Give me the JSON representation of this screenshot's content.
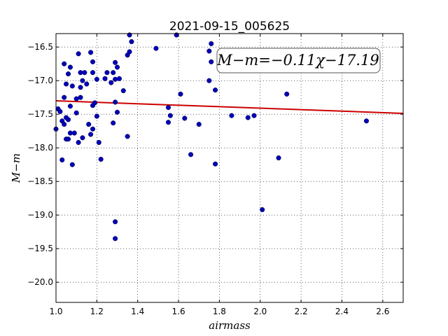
{
  "chart_data": {
    "type": "scatter",
    "title": "2021-09-15_005625",
    "xlabel": "airmass",
    "ylabel": "M−m",
    "xlim": [
      1.0,
      2.7
    ],
    "ylim": [
      -20.3,
      -16.3
    ],
    "y_inverted": true,
    "grid": true,
    "grid_style": "dotted",
    "xticks": [
      1.0,
      1.2,
      1.4,
      1.6,
      1.8,
      2.0,
      2.2,
      2.4,
      2.6
    ],
    "xtick_labels": [
      "1.0",
      "1.2",
      "1.4",
      "1.6",
      "1.8",
      "2.0",
      "2.2",
      "2.4",
      "2.6"
    ],
    "yticks": [
      -16.5,
      -17.0,
      -17.5,
      -18.0,
      -18.5,
      -19.0,
      -19.5,
      -20.0
    ],
    "ytick_labels": [
      "−16.5",
      "−17.0",
      "−17.5",
      "−18.0",
      "−18.5",
      "−19.0",
      "−19.5",
      "−20.0"
    ],
    "annotation": "M−m=−0.11χ−17.19",
    "annotation_position": "top-right",
    "fit_line": {
      "slope": -0.11,
      "intercept": -17.19,
      "color": "#cc0000"
    },
    "point_color": "#0000bb",
    "series": [
      {
        "type": "scatter",
        "points": [
          [
            1.0,
            -17.72
          ],
          [
            1.01,
            -17.42
          ],
          [
            1.02,
            -17.46
          ],
          [
            1.03,
            -18.18
          ],
          [
            1.03,
            -17.6
          ],
          [
            1.04,
            -17.65
          ],
          [
            1.04,
            -16.75
          ],
          [
            1.04,
            -17.25
          ],
          [
            1.05,
            -17.87
          ],
          [
            1.05,
            -17.55
          ],
          [
            1.05,
            -17.05
          ],
          [
            1.06,
            -16.9
          ],
          [
            1.06,
            -17.58
          ],
          [
            1.06,
            -17.87
          ],
          [
            1.07,
            -16.8
          ],
          [
            1.07,
            -17.38
          ],
          [
            1.07,
            -17.78
          ],
          [
            1.08,
            -17.08
          ],
          [
            1.08,
            -18.25
          ],
          [
            1.09,
            -17.78
          ],
          [
            1.1,
            -17.27
          ],
          [
            1.1,
            -17.48
          ],
          [
            1.11,
            -17.92
          ],
          [
            1.11,
            -16.6
          ],
          [
            1.12,
            -16.88
          ],
          [
            1.12,
            -17.1
          ],
          [
            1.12,
            -17.25
          ],
          [
            1.13,
            -17.0
          ],
          [
            1.13,
            -17.85
          ],
          [
            1.14,
            -16.88
          ],
          [
            1.15,
            -17.05
          ],
          [
            1.16,
            -17.65
          ],
          [
            1.17,
            -16.58
          ],
          [
            1.17,
            -17.8
          ],
          [
            1.18,
            -16.88
          ],
          [
            1.18,
            -16.72
          ],
          [
            1.18,
            -17.37
          ],
          [
            1.18,
            -17.72
          ],
          [
            1.19,
            -17.33
          ],
          [
            1.2,
            -17.53
          ],
          [
            1.2,
            -16.98
          ],
          [
            1.21,
            -17.92
          ],
          [
            1.22,
            -18.17
          ],
          [
            1.24,
            -16.97
          ],
          [
            1.25,
            -16.88
          ],
          [
            1.27,
            -17.03
          ],
          [
            1.28,
            -17.63
          ],
          [
            1.28,
            -16.88
          ],
          [
            1.29,
            -16.98
          ],
          [
            1.29,
            -16.73
          ],
          [
            1.29,
            -17.32
          ],
          [
            1.29,
            -19.35
          ],
          [
            1.29,
            -19.1
          ],
          [
            1.3,
            -16.8
          ],
          [
            1.3,
            -17.47
          ],
          [
            1.31,
            -16.97
          ],
          [
            1.33,
            -17.15
          ],
          [
            1.35,
            -16.62
          ],
          [
            1.35,
            -17.83
          ],
          [
            1.36,
            -16.32
          ],
          [
            1.36,
            -16.57
          ],
          [
            1.37,
            -16.42
          ],
          [
            1.49,
            -16.52
          ],
          [
            1.55,
            -17.4
          ],
          [
            1.55,
            -17.62
          ],
          [
            1.56,
            -17.52
          ],
          [
            1.59,
            -16.32
          ],
          [
            1.61,
            -17.2
          ],
          [
            1.63,
            -17.56
          ],
          [
            1.66,
            -18.1
          ],
          [
            1.7,
            -17.65
          ],
          [
            1.75,
            -16.56
          ],
          [
            1.75,
            -17.0
          ],
          [
            1.76,
            -16.45
          ],
          [
            1.76,
            -16.72
          ],
          [
            1.78,
            -18.24
          ],
          [
            1.78,
            -17.14
          ],
          [
            1.86,
            -17.52
          ],
          [
            1.94,
            -17.55
          ],
          [
            1.97,
            -17.52
          ],
          [
            2.01,
            -18.92
          ],
          [
            2.09,
            -18.15
          ],
          [
            2.13,
            -17.2
          ],
          [
            2.52,
            -17.6
          ]
        ]
      }
    ]
  }
}
